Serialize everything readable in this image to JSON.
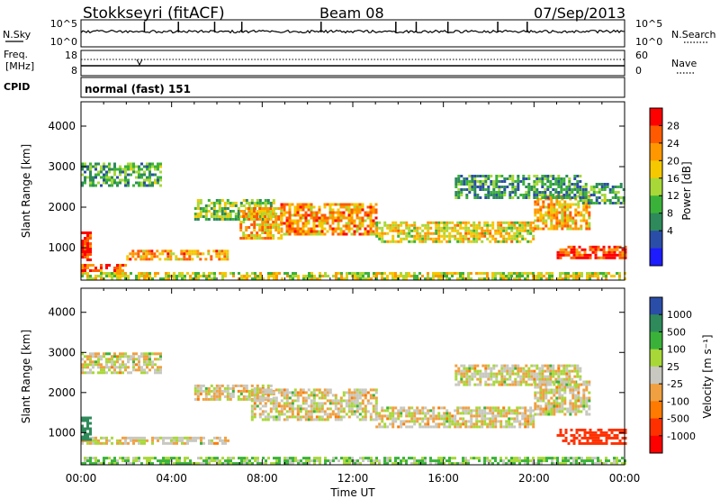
{
  "header": {
    "station": "Stokkseyri (fitACF)",
    "beam": "Beam 08",
    "date": "07/Sep/2013"
  },
  "noise_panel": {
    "left_label": "N.Sky",
    "right_label": "N.Search",
    "left_ticks": [
      "10^5",
      "10^0"
    ],
    "right_ticks": [
      "10^5",
      "10^0"
    ]
  },
  "freq_panel": {
    "left_label_1": "Freq.",
    "left_label_2": "[MHz]",
    "right_label": "Nave",
    "left_ticks": [
      "18",
      "8"
    ],
    "right_ticks": [
      "60",
      "0"
    ]
  },
  "cpid_panel": {
    "label": "CPID",
    "mode": "normal (fast) 151"
  },
  "power_panel": {
    "ylabel": "Slant Range [km]",
    "colorbar_label": "Power [dB]",
    "colorbar_ticks": [
      "28",
      "24",
      "20",
      "16",
      "12",
      "8",
      "4"
    ],
    "colorbar_colors": [
      "#ff0000",
      "#ff5a00",
      "#ff9800",
      "#f5c800",
      "#a8d838",
      "#3ab23a",
      "#2e8a5a",
      "#2a4ea8",
      "#1c1cff"
    ]
  },
  "velocity_panel": {
    "ylabel": "Slant Range [km]",
    "colorbar_label": "Velocity [m s⁻¹]",
    "colorbar_ticks": [
      "1000",
      "500",
      "100",
      "25",
      "-25",
      "-100",
      "-500",
      "-1000"
    ],
    "colorbar_colors": [
      "#2a4ea8",
      "#2e8a5a",
      "#3ab23a",
      "#a8d838",
      "#c8c8c0",
      "#f0a040",
      "#ff7a00",
      "#ff3000",
      "#ff0000"
    ]
  },
  "x_axis": {
    "label": "Time UT",
    "ticks": [
      "00:00",
      "04:00",
      "08:00",
      "12:00",
      "16:00",
      "20:00",
      "00:00"
    ]
  },
  "chart_data": {
    "type": "heatmap",
    "x_unit": "hours UT",
    "xlim": [
      0,
      24
    ],
    "ylim_km": [
      200,
      4600
    ],
    "y_ticks": [
      1000,
      2000,
      3000,
      4000
    ],
    "power_regions": [
      {
        "t0": 0.0,
        "t1": 24.0,
        "r0": 250,
        "r1": 400,
        "level": 0.55
      },
      {
        "t0": 0.0,
        "t1": 2.0,
        "r0": 400,
        "r1": 600,
        "level": 0.9
      },
      {
        "t0": 0.0,
        "t1": 0.4,
        "r0": 700,
        "r1": 1400,
        "level": 0.95
      },
      {
        "t0": 2.0,
        "t1": 6.5,
        "r0": 700,
        "r1": 950,
        "level": 0.75
      },
      {
        "t0": 0.0,
        "t1": 3.5,
        "r0": 2500,
        "r1": 3100,
        "level": 0.35
      },
      {
        "t0": 5.0,
        "t1": 8.5,
        "r0": 1700,
        "r1": 2200,
        "level": 0.45
      },
      {
        "t0": 7.0,
        "t1": 8.8,
        "r0": 1200,
        "r1": 2000,
        "level": 0.7
      },
      {
        "t0": 8.8,
        "t1": 13.0,
        "r0": 1300,
        "r1": 2100,
        "level": 0.75
      },
      {
        "t0": 13.0,
        "t1": 20.0,
        "r0": 1150,
        "r1": 1650,
        "level": 0.6
      },
      {
        "t0": 20.0,
        "t1": 22.5,
        "r0": 1450,
        "r1": 2300,
        "level": 0.7
      },
      {
        "t0": 21.0,
        "t1": 24.0,
        "r0": 750,
        "r1": 1050,
        "level": 0.95
      },
      {
        "t0": 16.5,
        "t1": 22.0,
        "r0": 2200,
        "r1": 2800,
        "level": 0.3
      },
      {
        "t0": 22.0,
        "t1": 24.0,
        "r0": 2100,
        "r1": 2600,
        "level": 0.35
      }
    ],
    "velocity_regions": [
      {
        "t0": 0.0,
        "t1": 24.0,
        "r0": 250,
        "r1": 400,
        "v": 60
      },
      {
        "t0": 0.0,
        "t1": 6.5,
        "r0": 700,
        "r1": 900,
        "v": 0
      },
      {
        "t0": 0.0,
        "t1": 0.4,
        "r0": 800,
        "r1": 1400,
        "v": 400
      },
      {
        "t0": 0.0,
        "t1": 3.5,
        "r0": 2500,
        "r1": 3000,
        "v": 0
      },
      {
        "t0": 5.0,
        "t1": 8.5,
        "r0": 1800,
        "r1": 2200,
        "v": 0
      },
      {
        "t0": 7.5,
        "t1": 13.0,
        "r0": 1300,
        "r1": 2100,
        "v": 0
      },
      {
        "t0": 13.0,
        "t1": 20.0,
        "r0": 1150,
        "r1": 1650,
        "v": 0
      },
      {
        "t0": 20.0,
        "t1": 22.5,
        "r0": 1450,
        "r1": 2300,
        "v": 0
      },
      {
        "t0": 21.0,
        "t1": 24.0,
        "r0": 750,
        "r1": 1100,
        "v": -400
      },
      {
        "t0": 16.5,
        "t1": 22.0,
        "r0": 2200,
        "r1": 2700,
        "v": 0
      }
    ],
    "noise_spikes_hours": [
      2.8,
      4.3,
      5.9,
      7.1,
      10.6,
      13.9,
      14.8,
      16.2,
      18.4,
      19.7
    ]
  }
}
